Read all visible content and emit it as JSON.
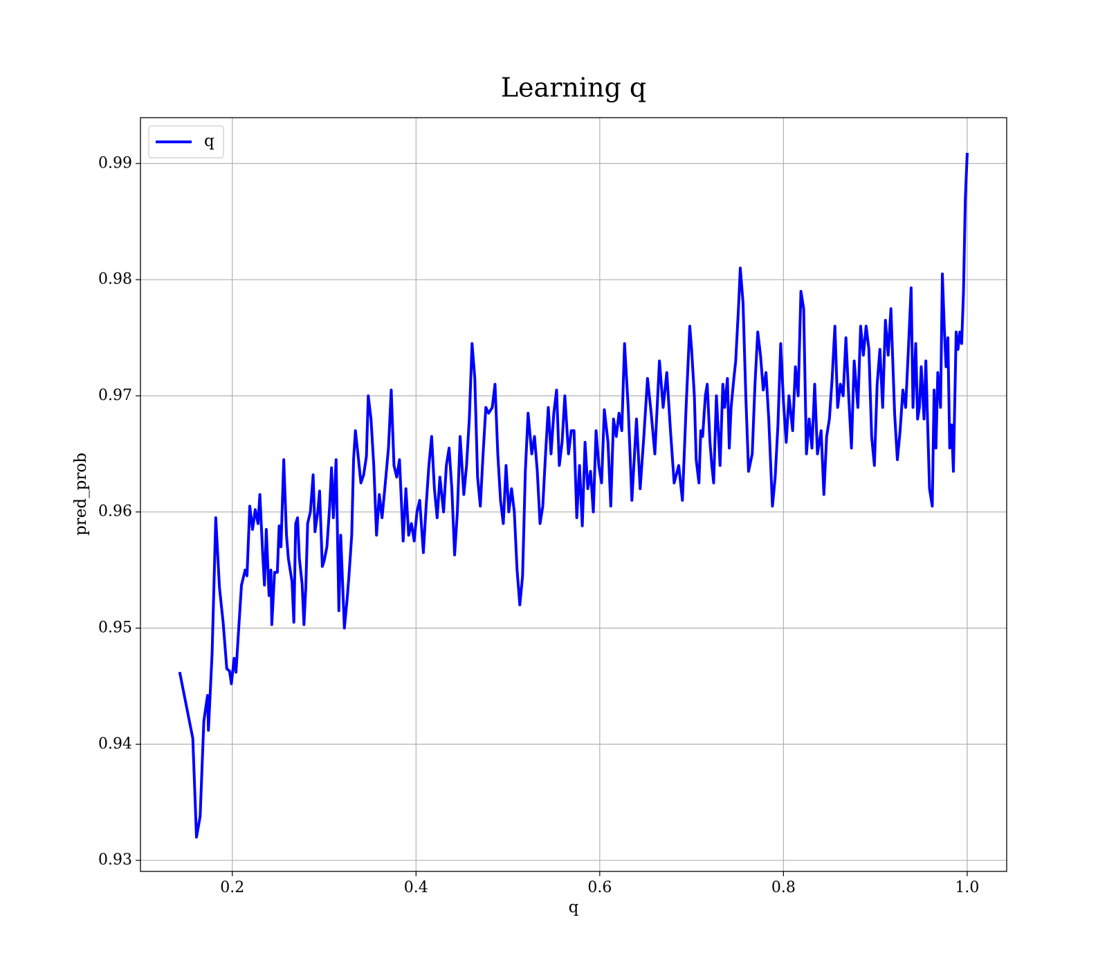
{
  "chart_data": {
    "type": "line",
    "title": "Learning q",
    "x_label": "q",
    "y_label": "pred_prob",
    "legend": "upper left",
    "grid": true,
    "xlim": [
      0.1,
      1.043
    ],
    "ylim": [
      0.92905,
      0.99395
    ],
    "xticks": [
      0.2,
      0.4,
      0.6,
      0.8,
      {
        "value": 1,
        "label": "1.0"
      }
    ],
    "yticks": [
      0.93,
      0.94,
      0.95,
      0.96,
      0.97,
      0.98,
      0.99
    ],
    "x": [
      0.143,
      0.157,
      0.161,
      0.165,
      0.169,
      0.173,
      0.174,
      0.178,
      0.182,
      0.186,
      0.19,
      0.194,
      0.197,
      0.199,
      0.202,
      0.204,
      0.207,
      0.21,
      0.214,
      0.216,
      0.219,
      0.222,
      0.225,
      0.228,
      0.23,
      0.233,
      0.235,
      0.237,
      0.24,
      0.242,
      0.243,
      0.246,
      0.249,
      0.251,
      0.253,
      0.256,
      0.259,
      0.261,
      0.265,
      0.267,
      0.269,
      0.271,
      0.273,
      0.276,
      0.278,
      0.28,
      0.282,
      0.285,
      0.288,
      0.29,
      0.293,
      0.295,
      0.298,
      0.3,
      0.303,
      0.306,
      0.308,
      0.31,
      0.313,
      0.316,
      0.318,
      0.322,
      0.325,
      0.327,
      0.33,
      0.332,
      0.334,
      0.337,
      0.34,
      0.343,
      0.346,
      0.348,
      0.351,
      0.354,
      0.357,
      0.36,
      0.363,
      0.366,
      0.37,
      0.373,
      0.376,
      0.379,
      0.382,
      0.386,
      0.389,
      0.392,
      0.395,
      0.398,
      0.401,
      0.404,
      0.408,
      0.411,
      0.414,
      0.417,
      0.42,
      0.423,
      0.426,
      0.43,
      0.433,
      0.436,
      0.439,
      0.442,
      0.445,
      0.448,
      0.452,
      0.455,
      0.458,
      0.461,
      0.464,
      0.467,
      0.47,
      0.473,
      0.476,
      0.479,
      0.483,
      0.486,
      0.489,
      0.492,
      0.495,
      0.498,
      0.501,
      0.504,
      0.507,
      0.51,
      0.513,
      0.516,
      0.519,
      0.522,
      0.526,
      0.529,
      0.532,
      0.535,
      0.538,
      0.541,
      0.544,
      0.547,
      0.55,
      0.553,
      0.556,
      0.559,
      0.562,
      0.566,
      0.569,
      0.572,
      0.575,
      0.578,
      0.581,
      0.584,
      0.587,
      0.59,
      0.593,
      0.596,
      0.599,
      0.602,
      0.605,
      0.609,
      0.612,
      0.615,
      0.618,
      0.621,
      0.624,
      0.627,
      0.631,
      0.635,
      0.64,
      0.644,
      0.648,
      0.652,
      0.656,
      0.66,
      0.665,
      0.669,
      0.673,
      0.677,
      0.681,
      0.686,
      0.69,
      0.694,
      0.698,
      0.7,
      0.703,
      0.705,
      0.708,
      0.71,
      0.712,
      0.715,
      0.717,
      0.72,
      0.722,
      0.724,
      0.727,
      0.729,
      0.731,
      0.734,
      0.736,
      0.739,
      0.741,
      0.743,
      0.746,
      0.748,
      0.751,
      0.753,
      0.756,
      0.759,
      0.762,
      0.766,
      0.769,
      0.772,
      0.775,
      0.778,
      0.781,
      0.784,
      0.788,
      0.791,
      0.794,
      0.797,
      0.8,
      0.803,
      0.806,
      0.81,
      0.813,
      0.816,
      0.819,
      0.822,
      0.825,
      0.828,
      0.831,
      0.834,
      0.837,
      0.841,
      0.844,
      0.847,
      0.85,
      0.853,
      0.856,
      0.859,
      0.862,
      0.865,
      0.868,
      0.871,
      0.874,
      0.877,
      0.881,
      0.884,
      0.887,
      0.89,
      0.893,
      0.896,
      0.899,
      0.902,
      0.905,
      0.908,
      0.911,
      0.914,
      0.917,
      0.921,
      0.924,
      0.927,
      0.93,
      0.933,
      0.936,
      0.939,
      0.941,
      0.944,
      0.946,
      0.948,
      0.95,
      0.953,
      0.955,
      0.957,
      0.959,
      0.962,
      0.964,
      0.966,
      0.968,
      0.971,
      0.973,
      0.975,
      0.977,
      0.979,
      0.981,
      0.983,
      0.985,
      0.988,
      0.99,
      0.992,
      0.994,
      0.996,
      0.998,
      1.0
    ],
    "series": [
      {
        "name": "q",
        "color": "#0000ff",
        "values": [
          0.9461,
          0.9405,
          0.932,
          0.9338,
          0.942,
          0.9442,
          0.9412,
          0.9478,
          0.9595,
          0.9535,
          0.9505,
          0.9465,
          0.9463,
          0.9452,
          0.9474,
          0.9462,
          0.95,
          0.9537,
          0.955,
          0.9545,
          0.9605,
          0.9585,
          0.9602,
          0.959,
          0.9615,
          0.9565,
          0.9537,
          0.9585,
          0.9528,
          0.955,
          0.9503,
          0.9548,
          0.9548,
          0.9588,
          0.957,
          0.9645,
          0.958,
          0.956,
          0.954,
          0.9505,
          0.959,
          0.9595,
          0.956,
          0.9538,
          0.9503,
          0.9535,
          0.959,
          0.96,
          0.9632,
          0.9583,
          0.96,
          0.9618,
          0.9553,
          0.9558,
          0.957,
          0.9605,
          0.9638,
          0.9595,
          0.9645,
          0.9515,
          0.958,
          0.95,
          0.9525,
          0.9545,
          0.958,
          0.9645,
          0.967,
          0.9648,
          0.9625,
          0.9632,
          0.9648,
          0.97,
          0.968,
          0.964,
          0.958,
          0.9615,
          0.9595,
          0.962,
          0.9655,
          0.9705,
          0.964,
          0.963,
          0.9645,
          0.9575,
          0.962,
          0.958,
          0.959,
          0.9575,
          0.96,
          0.961,
          0.9565,
          0.9605,
          0.964,
          0.9665,
          0.962,
          0.9595,
          0.963,
          0.96,
          0.964,
          0.9655,
          0.962,
          0.9563,
          0.96,
          0.9665,
          0.9615,
          0.964,
          0.968,
          0.9745,
          0.9715,
          0.963,
          0.9605,
          0.965,
          0.969,
          0.9685,
          0.969,
          0.971,
          0.965,
          0.961,
          0.959,
          0.964,
          0.96,
          0.962,
          0.96,
          0.955,
          0.952,
          0.9545,
          0.9635,
          0.9685,
          0.965,
          0.9665,
          0.9635,
          0.959,
          0.9605,
          0.965,
          0.969,
          0.965,
          0.9685,
          0.9705,
          0.964,
          0.966,
          0.97,
          0.965,
          0.967,
          0.967,
          0.9595,
          0.964,
          0.9588,
          0.966,
          0.962,
          0.9635,
          0.96,
          0.967,
          0.964,
          0.9625,
          0.9688,
          0.966,
          0.9605,
          0.968,
          0.9665,
          0.9685,
          0.967,
          0.9745,
          0.969,
          0.961,
          0.968,
          0.962,
          0.9665,
          0.9715,
          0.9685,
          0.965,
          0.973,
          0.969,
          0.972,
          0.967,
          0.9625,
          0.964,
          0.961,
          0.969,
          0.976,
          0.974,
          0.97,
          0.9645,
          0.9625,
          0.967,
          0.9665,
          0.97,
          0.971,
          0.966,
          0.964,
          0.9625,
          0.97,
          0.967,
          0.964,
          0.971,
          0.969,
          0.9715,
          0.9655,
          0.969,
          0.9715,
          0.973,
          0.9775,
          0.981,
          0.978,
          0.97,
          0.9635,
          0.965,
          0.971,
          0.9755,
          0.9735,
          0.9705,
          0.972,
          0.968,
          0.9605,
          0.963,
          0.9675,
          0.9745,
          0.9695,
          0.966,
          0.97,
          0.967,
          0.9725,
          0.97,
          0.979,
          0.9775,
          0.965,
          0.968,
          0.9655,
          0.971,
          0.965,
          0.967,
          0.9615,
          0.9665,
          0.968,
          0.9715,
          0.976,
          0.969,
          0.971,
          0.97,
          0.975,
          0.97,
          0.9655,
          0.973,
          0.969,
          0.976,
          0.9735,
          0.976,
          0.974,
          0.9665,
          0.964,
          0.971,
          0.974,
          0.969,
          0.9765,
          0.9735,
          0.9775,
          0.9685,
          0.9645,
          0.967,
          0.9705,
          0.969,
          0.974,
          0.9793,
          0.969,
          0.9745,
          0.968,
          0.969,
          0.9725,
          0.968,
          0.973,
          0.9675,
          0.962,
          0.9605,
          0.9705,
          0.9655,
          0.972,
          0.969,
          0.9805,
          0.976,
          0.9725,
          0.975,
          0.9655,
          0.9675,
          0.9635,
          0.9755,
          0.974,
          0.9755,
          0.9745,
          0.979,
          0.987,
          0.9908
        ]
      }
    ]
  }
}
